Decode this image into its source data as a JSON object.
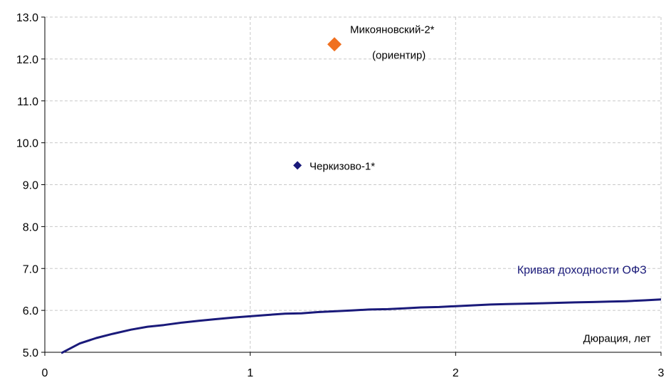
{
  "chart_data": {
    "type": "line",
    "xlim": [
      0,
      3
    ],
    "ylim": [
      5.0,
      13.0
    ],
    "x_ticks": [
      {
        "value": 0,
        "label": "0"
      },
      {
        "value": 1,
        "label": "1"
      },
      {
        "value": 2,
        "label": "2"
      },
      {
        "value": 3,
        "label": "3"
      }
    ],
    "y_ticks": [
      {
        "value": 5.0,
        "label": "5.0"
      },
      {
        "value": 6.0,
        "label": "6.0"
      },
      {
        "value": 7.0,
        "label": "7.0"
      },
      {
        "value": 8.0,
        "label": "8.0"
      },
      {
        "value": 9.0,
        "label": "9.0"
      },
      {
        "value": 10.0,
        "label": "10.0"
      },
      {
        "value": 11.0,
        "label": "11.0"
      },
      {
        "value": 12.0,
        "label": "12.0"
      },
      {
        "value": 13.0,
        "label": "13.0"
      }
    ],
    "grid": true,
    "xlabel": "Дюрация, лет",
    "curve": {
      "name": "Кривая доходности ОФЗ",
      "color": "#1a1a7a",
      "points": [
        [
          0.08,
          4.98
        ],
        [
          0.17,
          5.21
        ],
        [
          0.25,
          5.34
        ],
        [
          0.33,
          5.44
        ],
        [
          0.42,
          5.54
        ],
        [
          0.5,
          5.61
        ],
        [
          0.58,
          5.65
        ],
        [
          0.67,
          5.71
        ],
        [
          0.75,
          5.75
        ],
        [
          0.83,
          5.79
        ],
        [
          0.92,
          5.83
        ],
        [
          1.0,
          5.86
        ],
        [
          1.08,
          5.89
        ],
        [
          1.17,
          5.92
        ],
        [
          1.25,
          5.93
        ],
        [
          1.33,
          5.96
        ],
        [
          1.42,
          5.98
        ],
        [
          1.5,
          6.0
        ],
        [
          1.58,
          6.02
        ],
        [
          1.67,
          6.03
        ],
        [
          1.75,
          6.05
        ],
        [
          1.83,
          6.07
        ],
        [
          1.92,
          6.08
        ],
        [
          2.0,
          6.1
        ],
        [
          2.08,
          6.12
        ],
        [
          2.17,
          6.14
        ],
        [
          2.25,
          6.15
        ],
        [
          2.33,
          6.16
        ],
        [
          2.42,
          6.17
        ],
        [
          2.5,
          6.18
        ],
        [
          2.58,
          6.19
        ],
        [
          2.67,
          6.2
        ],
        [
          2.75,
          6.21
        ],
        [
          2.83,
          6.22
        ],
        [
          2.92,
          6.24
        ],
        [
          3.0,
          6.26
        ]
      ]
    },
    "points": [
      {
        "name": "Черкизово-1*",
        "x": 1.23,
        "y": 9.46,
        "color": "#1a1a7a",
        "marker": "small-diamond"
      },
      {
        "name": "Микояновский-2*",
        "subtitle": "(ориентир)",
        "x": 1.41,
        "y": 12.35,
        "color": "#f07020",
        "marker": "large-diamond"
      }
    ]
  }
}
